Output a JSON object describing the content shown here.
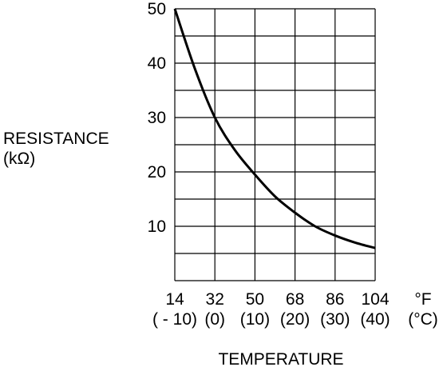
{
  "chart_data": {
    "type": "line",
    "title": "",
    "ylabel_line1": "RESISTANCE",
    "ylabel_line2": "(kΩ)",
    "xlabel": "TEMPERATURE",
    "x_unit_primary": "°F",
    "x_unit_secondary": "(°C)",
    "xlim": [
      14,
      104
    ],
    "ylim": [
      0,
      50
    ],
    "grid": true,
    "x_ticks_f": [
      "14",
      "32",
      "50",
      "68",
      "86",
      "104"
    ],
    "x_ticks_c": [
      "( - 10)",
      "(0)",
      "(10)",
      "(20)",
      "(30)",
      "(40)"
    ],
    "y_ticks": [
      "10",
      "20",
      "30",
      "40",
      "50"
    ],
    "series": [
      {
        "x": [
          14,
          23,
          32,
          41,
          50,
          59,
          68,
          77,
          86,
          95,
          104
        ],
        "y": [
          50,
          39,
          30,
          24,
          19.5,
          15.5,
          12.5,
          10,
          8.3,
          7,
          6
        ]
      }
    ]
  }
}
